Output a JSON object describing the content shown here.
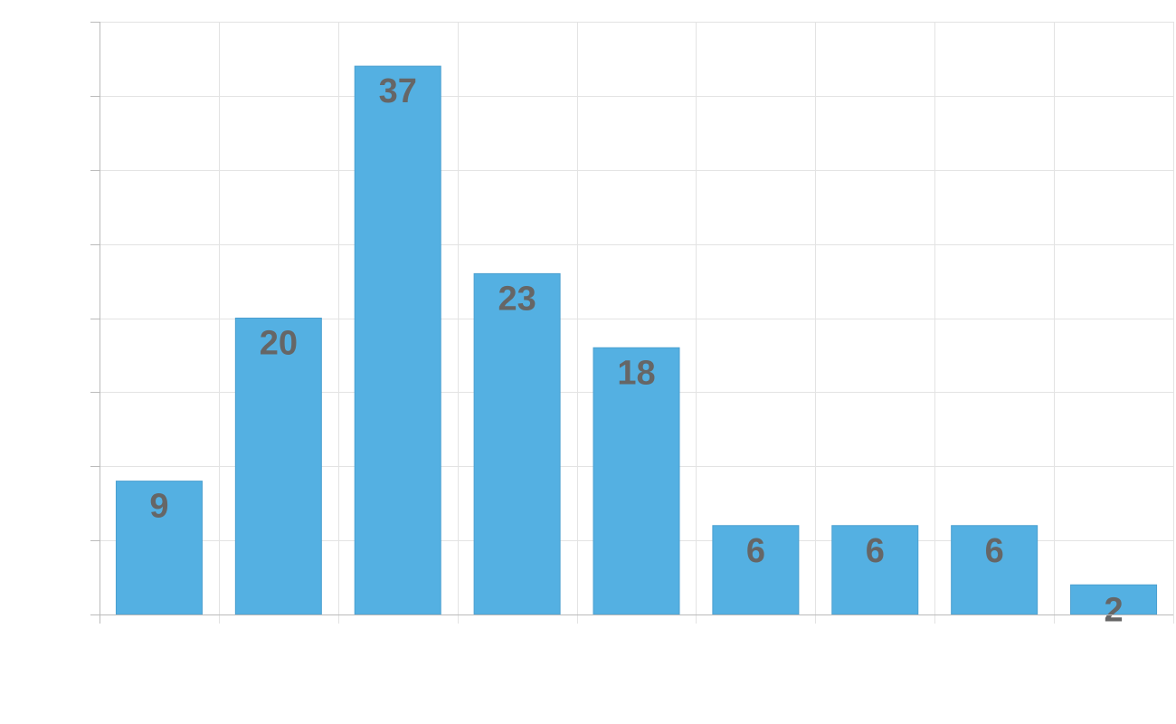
{
  "chart_data": {
    "type": "bar",
    "categories": [
      "",
      "",
      "",
      "",
      "",
      "",
      "",
      "",
      ""
    ],
    "values": [
      9,
      20,
      37,
      23,
      18,
      6,
      6,
      6,
      2
    ],
    "title": "",
    "xlabel": "",
    "ylabel": "",
    "ylim": [
      0,
      40
    ],
    "ytick_step": 5,
    "grid": true,
    "data_labels": true,
    "legend": "none",
    "colors": {
      "bar": "#54b0e2",
      "bar_edge": "#4a9fd0",
      "label": "#666666",
      "grid": "#e3e3e3",
      "axis": "#bbbbbb"
    }
  }
}
